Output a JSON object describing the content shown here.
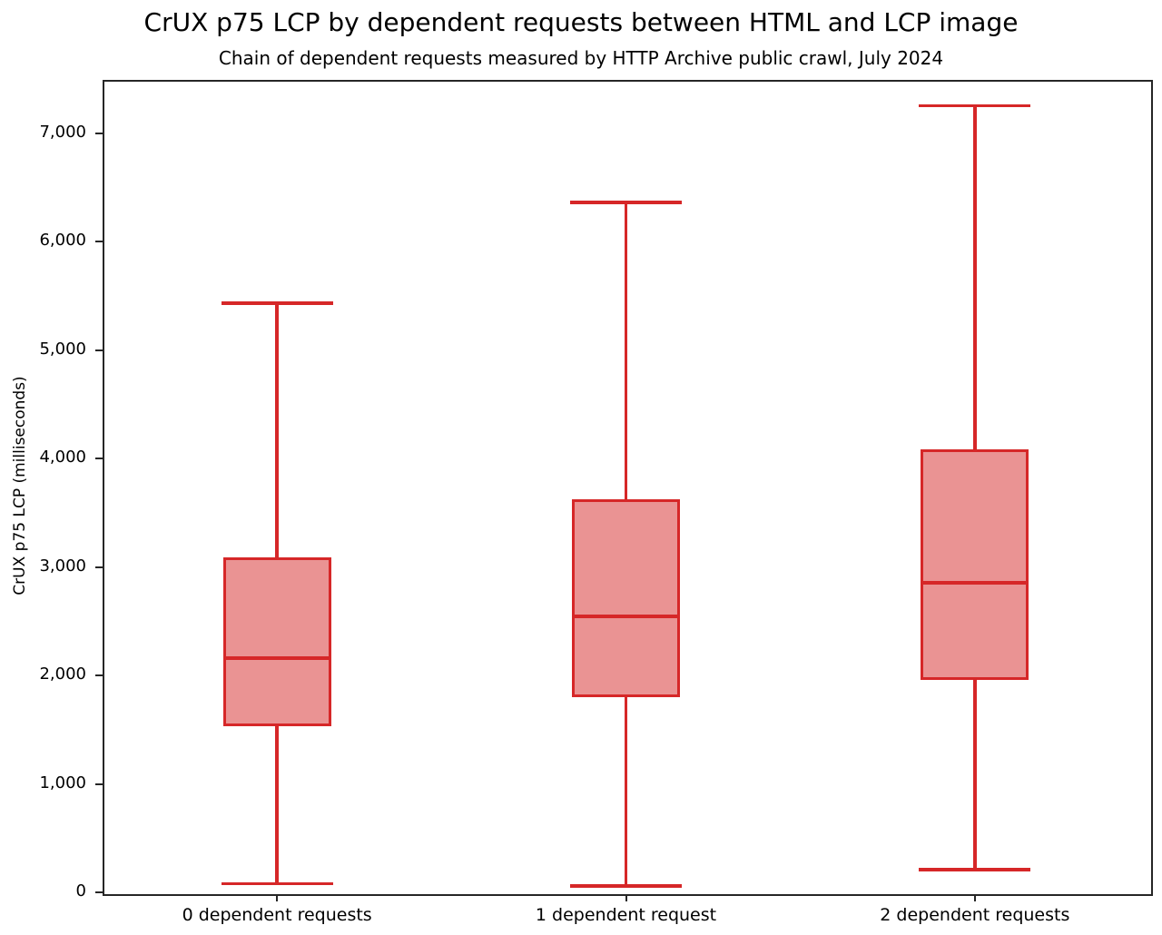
{
  "title": "CrUX p75 LCP by dependent requests between HTML and LCP image",
  "subtitle": "Chain of dependent requests measured by HTTP Archive public crawl, July 2024",
  "chart_data": {
    "type": "boxplot",
    "title": "CrUX p75 LCP by dependent requests between HTML and LCP image",
    "subtitle": "Chain of dependent requests measured by HTTP Archive public crawl, July 2024",
    "xlabel": "",
    "ylabel": "CrUX p75 LCP (milliseconds)",
    "categories": [
      "0 dependent requests",
      "1 dependent request",
      "2 dependent requests"
    ],
    "series": [
      {
        "name": "0 dependent requests",
        "whisker_low": 80,
        "q1": 1530,
        "median": 2160,
        "q3": 3090,
        "whisker_high": 5430
      },
      {
        "name": "1 dependent request",
        "whisker_low": 60,
        "q1": 1800,
        "median": 2540,
        "q3": 3620,
        "whisker_high": 6360
      },
      {
        "name": "2 dependent requests",
        "whisker_low": 210,
        "q1": 1960,
        "median": 2850,
        "q3": 4080,
        "whisker_high": 7250
      }
    ],
    "ylim": [
      0,
      7490
    ],
    "yticks": [
      0,
      1000,
      2000,
      3000,
      4000,
      5000,
      6000,
      7000
    ],
    "ytick_labels": [
      "0",
      "1,000",
      "2,000",
      "3,000",
      "4,000",
      "5,000",
      "6,000",
      "7,000"
    ],
    "grid": false,
    "legend": "none",
    "colors": {
      "box_edge": "#d62728",
      "box_fill": "rgba(214,39,40,0.5)",
      "axis": "#262626",
      "text": "#000000",
      "background": "#ffffff"
    },
    "layout_hints": {
      "box_width_frac": 0.31,
      "cap_width_frac": 0.16
    }
  }
}
